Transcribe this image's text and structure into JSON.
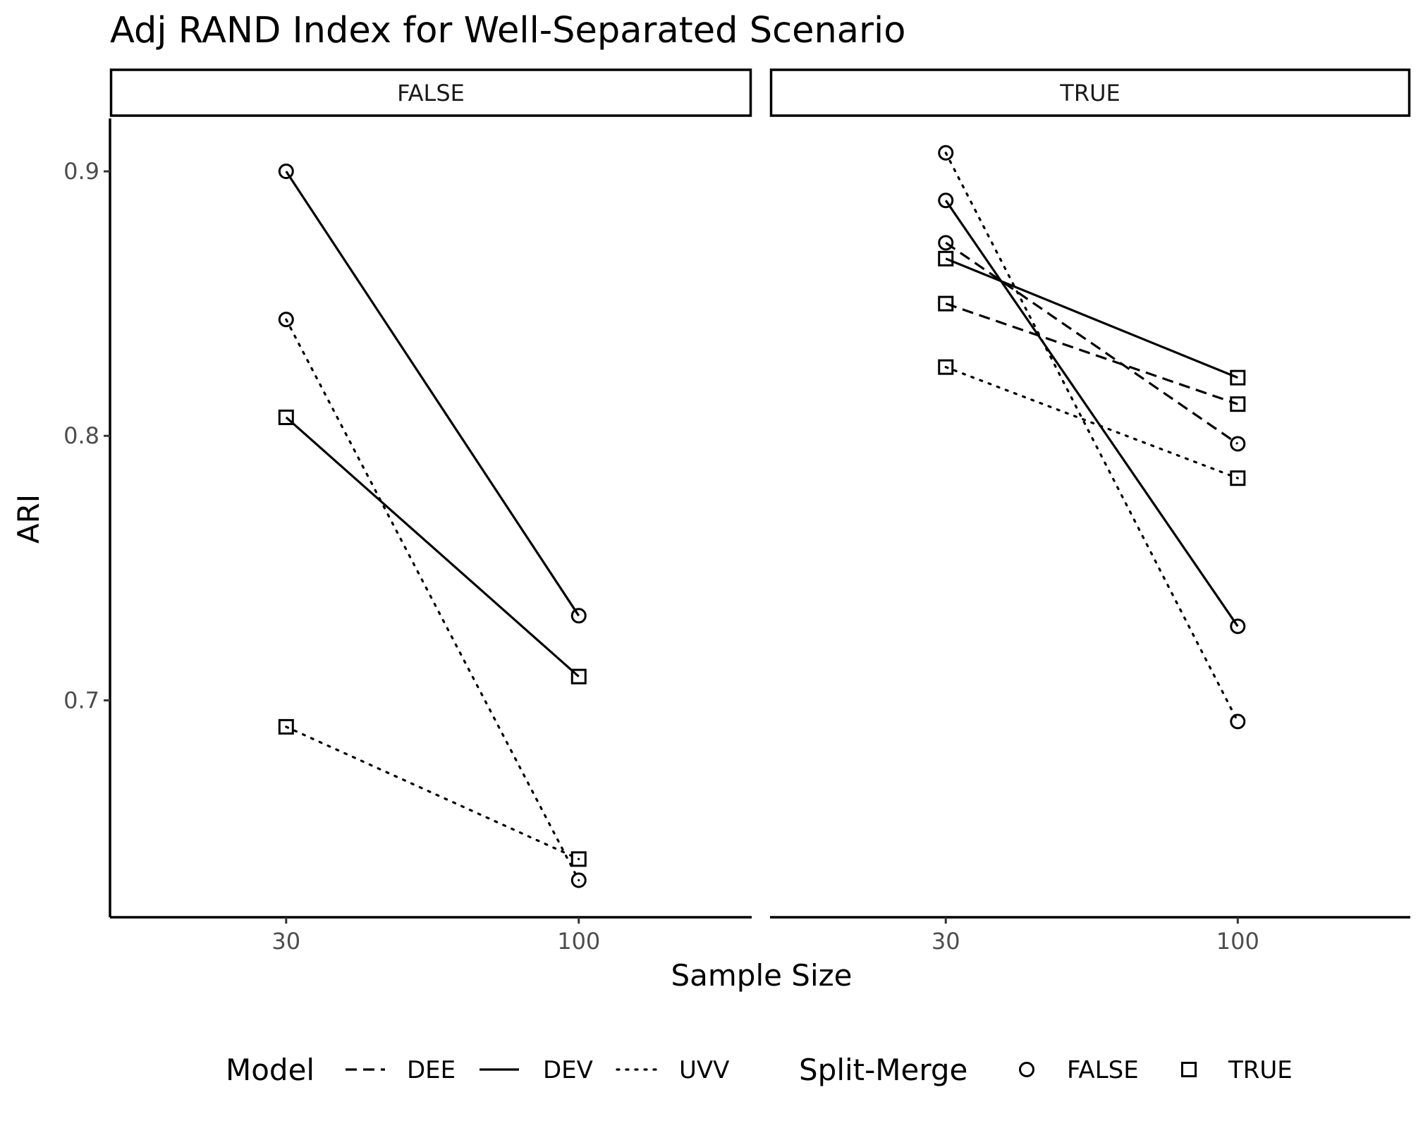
{
  "chart_data": {
    "type": "line",
    "title": "Adj RAND Index for Well-Separated Scenario",
    "xlabel": "Sample Size",
    "ylabel": "ARI",
    "x_categories": [
      "30",
      "100"
    ],
    "yticks": [
      0.7,
      0.8,
      0.9
    ],
    "ylim": [
      0.618,
      0.92
    ],
    "grid": false,
    "facets": [
      "FALSE",
      "TRUE"
    ],
    "legend": {
      "position": "bottom",
      "model_title": "Model",
      "models": [
        "DEE",
        "DEV",
        "UVV"
      ],
      "split_title": "Split-Merge",
      "split_levels": [
        "FALSE",
        "TRUE"
      ]
    },
    "series": [
      {
        "facet": "FALSE",
        "model": "DEV",
        "split_merge": "FALSE",
        "values": [
          0.9,
          0.732
        ]
      },
      {
        "facet": "FALSE",
        "model": "UVV",
        "split_merge": "FALSE",
        "values": [
          0.844,
          0.632
        ]
      },
      {
        "facet": "FALSE",
        "model": "DEV",
        "split_merge": "TRUE",
        "values": [
          0.807,
          0.709
        ]
      },
      {
        "facet": "FALSE",
        "model": "UVV",
        "split_merge": "TRUE",
        "values": [
          0.69,
          0.64
        ]
      },
      {
        "facet": "TRUE",
        "model": "UVV",
        "split_merge": "FALSE",
        "values": [
          0.907,
          0.692
        ]
      },
      {
        "facet": "TRUE",
        "model": "DEV",
        "split_merge": "FALSE",
        "values": [
          0.889,
          0.728
        ]
      },
      {
        "facet": "TRUE",
        "model": "DEE",
        "split_merge": "FALSE",
        "values": [
          0.873,
          0.797
        ]
      },
      {
        "facet": "TRUE",
        "model": "DEV",
        "split_merge": "TRUE",
        "values": [
          0.867,
          0.822
        ]
      },
      {
        "facet": "TRUE",
        "model": "DEE",
        "split_merge": "TRUE",
        "values": [
          0.85,
          0.812
        ]
      },
      {
        "facet": "TRUE",
        "model": "UVV",
        "split_merge": "TRUE",
        "values": [
          0.826,
          0.784
        ]
      }
    ]
  }
}
